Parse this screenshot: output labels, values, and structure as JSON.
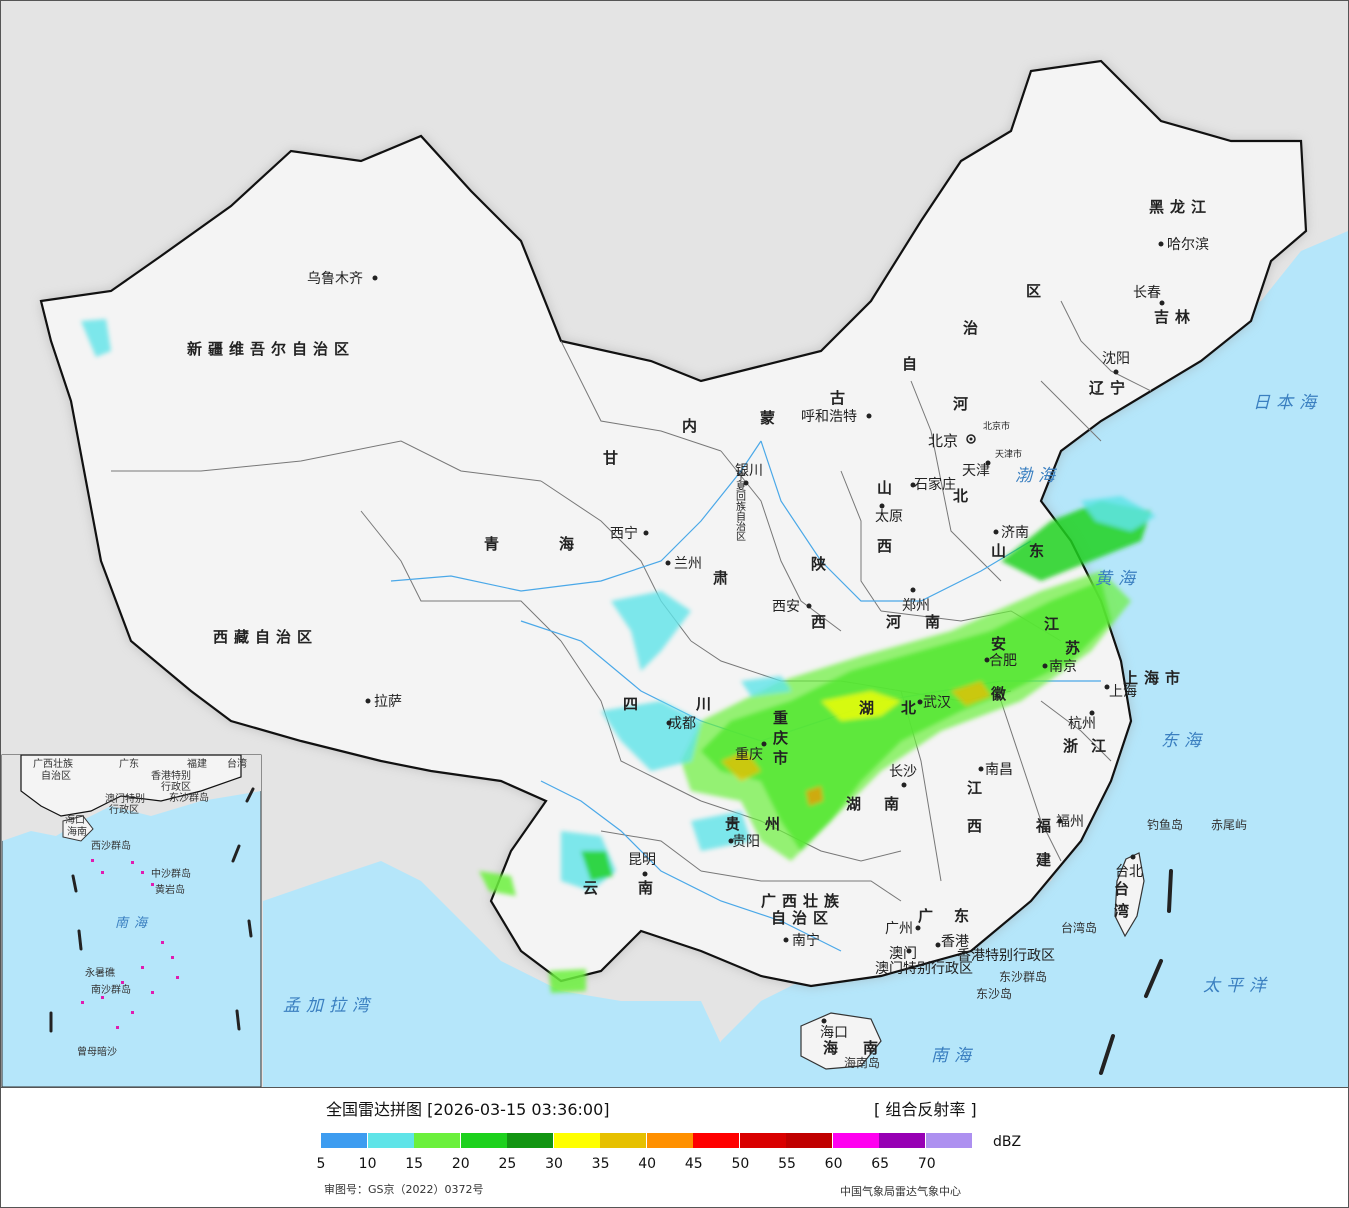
{
  "map": {
    "cities": {
      "urumqi": "乌鲁木齐",
      "lhasa": "拉萨",
      "xining": "西宁",
      "lanzhou": "兰州",
      "yinchuan": "银川",
      "hohhot": "呼和浩特",
      "beijing": "北京",
      "beijing_small": "北京市",
      "tianjin": "天津",
      "tianjin_small": "天津",
      "shijiazhuang": "石家庄",
      "taiyuan": "太原",
      "xian": "西安",
      "zhengzhou": "郑州",
      "jinan": "济南",
      "hefei": "合肥",
      "nanjing": "南京",
      "shanghai": "上海",
      "hangzhou": "杭州",
      "nanchang": "南昌",
      "fuzhou": "福州",
      "taipei": "台北",
      "wuhan": "武汉",
      "changsha": "长沙",
      "chongqing": "重庆",
      "chengdu": "成都",
      "guiyang": "贵阳",
      "kunming": "昆明",
      "nanning": "南宁",
      "guangzhou": "广州",
      "hongkong": "香港",
      "macao": "澳门",
      "haikou": "海口",
      "shenyang": "沈阳",
      "changchun": "长春",
      "harbin": "哈尔滨"
    },
    "provinces": {
      "xinjiang": "新疆维吾尔自治区",
      "tibet": "西藏自治区",
      "qinghai_1": "青",
      "qinghai_2": "海",
      "gansu_1": "甘",
      "gansu_2": "肃",
      "neimenggu_1": "内",
      "neimenggu_2": "蒙",
      "neimenggu_3": "古",
      "neimenggu_4": "自",
      "neimenggu_5": "治",
      "neimenggu_6": "区",
      "heilongjiang": "黑龙江",
      "jilin": "吉林",
      "liaoning": "辽宁",
      "hebei_1": "河",
      "hebei_2": "北",
      "shanxi_1": "山",
      "shanxi_2": "西",
      "shaanxi_1": "陕",
      "shaanxi_2": "西",
      "ningxia": "宁夏回族自治区",
      "henan_1": "河",
      "henan_2": "南",
      "shandong_1": "山",
      "shandong_2": "东",
      "jiangsu_1": "江",
      "jiangsu_2": "苏",
      "anhui_1": "安",
      "anhui_2": "徽",
      "shanghai_shi": "上海市",
      "zhejiang_1": "浙",
      "zhejiang_2": "江",
      "hubei_1": "湖",
      "hubei_2": "北",
      "hunan_1": "湖",
      "hunan_2": "南",
      "jiangxi_1": "江",
      "jiangxi_2": "西",
      "fujian_1": "福",
      "fujian_2": "建",
      "taiwan_1": "台",
      "taiwan_2": "湾",
      "sichuan_1": "四",
      "sichuan_2": "川",
      "chongqing_1": "重",
      "chongqing_2": "庆",
      "chongqing_3": "市",
      "guizhou_1": "贵",
      "guizhou_2": "州",
      "yunnan_1": "云",
      "yunnan_2": "南",
      "guangxi_1": "广西壮族",
      "guangxi_2": "自治区",
      "guangdong_1": "广",
      "guangdong_2": "东",
      "hainan_1": "海",
      "hainan_2": "南",
      "hk_sar": "香港特别行政区",
      "macao_sar": "澳门特别行政区",
      "tianjin_shi": "天津市",
      "beijing_shi": "北京市"
    },
    "islands": {
      "diaoyu": "钓鱼岛",
      "chiwei": "赤尾屿",
      "taiwan_island": "台湾岛",
      "dongsha_qundao": "东沙群岛",
      "dongsha_dao": "东沙岛",
      "hainan_dao": "海南岛"
    },
    "seas": {
      "bohai": "渤海",
      "huanghai": "黄海",
      "donghai": "东海",
      "nanhai": "南海",
      "japan_sea": "日本海",
      "pacific": "太平洋",
      "bengal": "孟加拉湾"
    },
    "inset": {
      "labels": [
        "广西壮族",
        "自治区",
        "广东",
        "福建",
        "台湾",
        "香港特别",
        "行政区",
        "澳门特别",
        "行政区",
        "东沙群岛",
        "海口",
        "海南",
        "西沙群岛",
        "中沙群岛",
        "黄岩岛",
        "南海",
        "永暑礁",
        "南沙群岛",
        "曾母暗沙"
      ]
    }
  },
  "legend": {
    "title": "全国雷达拼图 [2026-03-15 03:36:00]",
    "product": "[ 组合反射率 ]",
    "unit": "dBZ",
    "colors": [
      "#3d9cf0",
      "#5fe4e8",
      "#6bf03c",
      "#1dd11d",
      "#129512",
      "#ffff00",
      "#e6c000",
      "#ff9000",
      "#ff0000",
      "#d90000",
      "#c00000",
      "#ff00f0",
      "#9700b4",
      "#ad90f0"
    ],
    "ticks": [
      "5",
      "10",
      "15",
      "20",
      "25",
      "30",
      "35",
      "40",
      "45",
      "50",
      "55",
      "60",
      "65",
      "70"
    ],
    "approval": "审图号：GS京（2022）0372号",
    "source": "中国气象局雷达气象中心"
  }
}
